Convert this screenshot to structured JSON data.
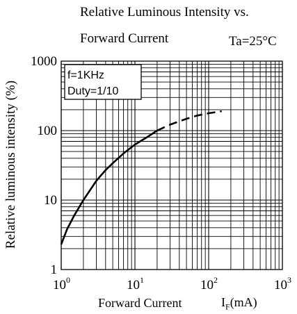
{
  "chart_data": {
    "type": "line",
    "title_line1": "Relative Luminous Intensity   vs.",
    "title_line2": "Forward Current",
    "condition": "Ta=25°C",
    "xlabel": "Forward Current",
    "xlabel_symbol": "I",
    "xlabel_subscript": "F",
    "xlabel_unit": "(mA)",
    "ylabel": "Relative luminous intensity (%)",
    "xscale": "log",
    "yscale": "log",
    "xlim": [
      1,
      1000
    ],
    "ylim": [
      1,
      1000
    ],
    "grid": true,
    "x_ticks": [
      {
        "value": 1,
        "base": "10",
        "exp": "0"
      },
      {
        "value": 10,
        "base": "10",
        "exp": "1"
      },
      {
        "value": 100,
        "base": "10",
        "exp": "2"
      },
      {
        "value": 1000,
        "base": "10",
        "exp": "3"
      }
    ],
    "y_ticks": [
      {
        "value": 1,
        "label": "1"
      },
      {
        "value": 10,
        "label": "10"
      },
      {
        "value": 100,
        "label": "100"
      },
      {
        "value": 1000,
        "label": "1000"
      }
    ],
    "annotation": [
      "f=1KHz",
      "Duty=1/10"
    ],
    "series": [
      {
        "style": "solid",
        "x": [
          1,
          1.2,
          1.5,
          2,
          3,
          4,
          5,
          7,
          10,
          15,
          20
        ],
        "y": [
          2.3,
          3.8,
          6,
          10,
          19,
          27,
          34,
          47,
          63,
          82,
          100
        ]
      },
      {
        "style": "dashed",
        "x": [
          20,
          30,
          50,
          70,
          100,
          150
        ],
        "y": [
          100,
          122,
          148,
          165,
          178,
          190
        ]
      }
    ]
  }
}
